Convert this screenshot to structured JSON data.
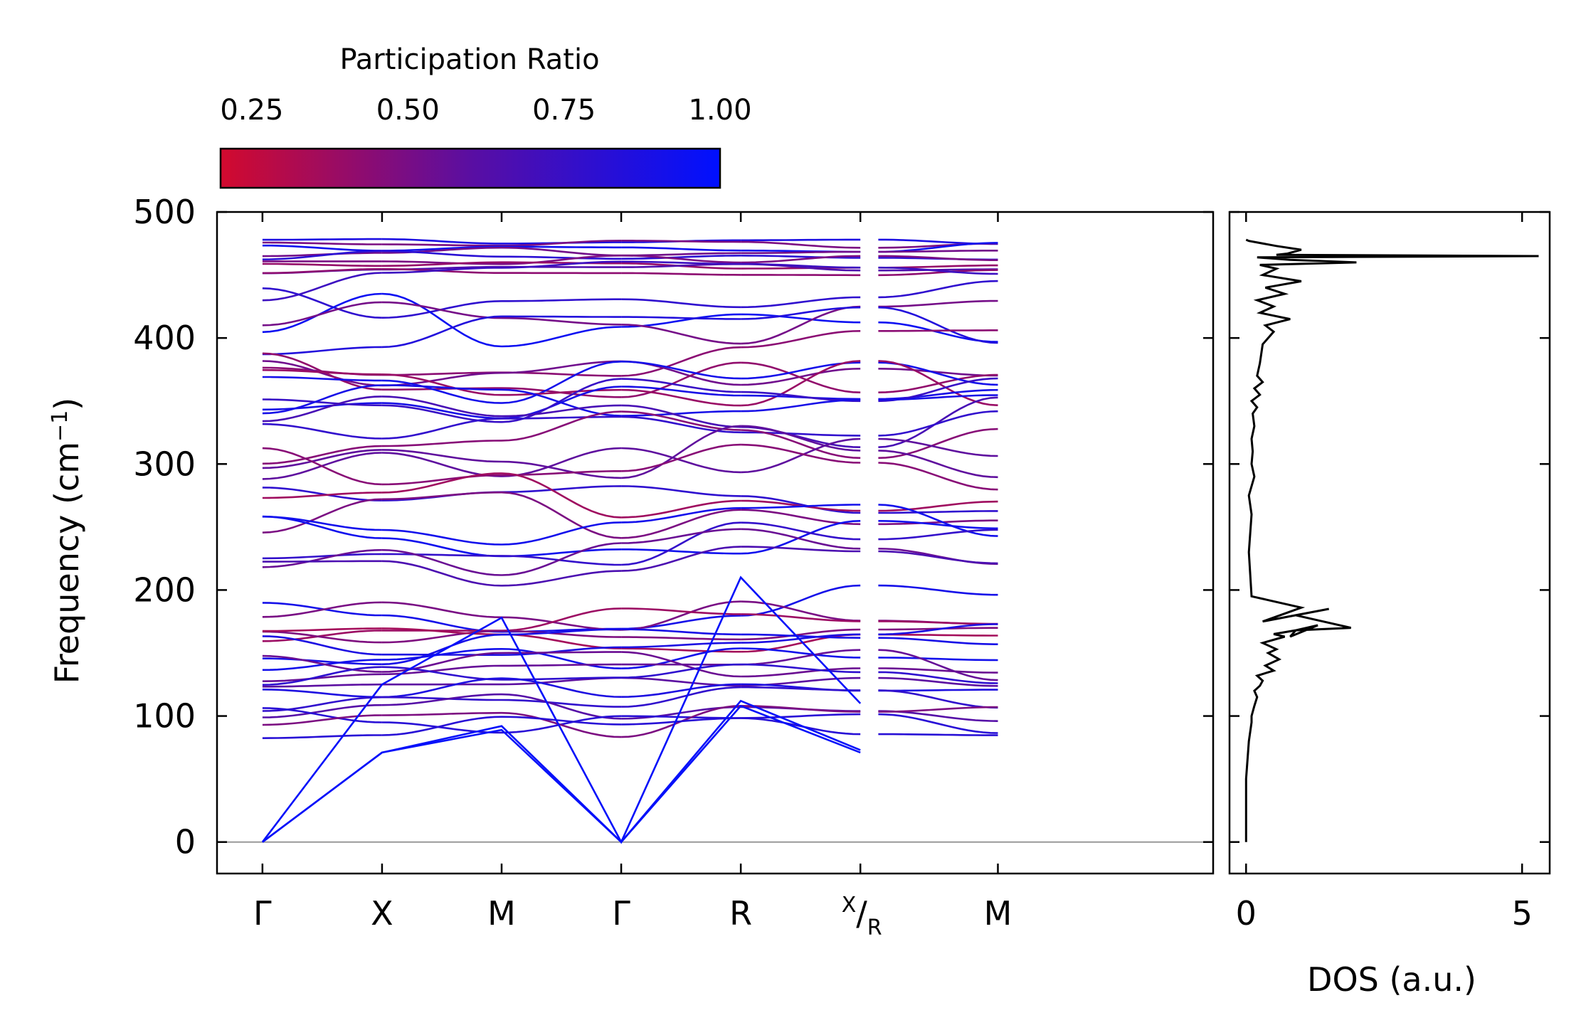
{
  "chart_data": [
    {
      "type": "line",
      "subtype": "phonon-dispersion",
      "colormap": {
        "title": "Participation Ratio",
        "range": [
          0.2,
          1.0
        ],
        "ticks": [
          0.25,
          0.5,
          0.75,
          1.0
        ],
        "tick_labels": [
          "0.25",
          "0.50",
          "0.75",
          "1.00"
        ],
        "low_color": "#d20a2e",
        "mid_color": "#5a0ea2",
        "high_color": "#0010ff"
      },
      "ylabel": "Frequency (cm",
      "ylabel_sup": "−1",
      "ylabel_close": ")",
      "ylim": [
        -25,
        500
      ],
      "yticks": [
        0,
        100,
        200,
        300,
        400,
        500
      ],
      "ytick_labels": [
        "0",
        "100",
        "200",
        "300",
        "400",
        "500"
      ],
      "kpath": {
        "labels": [
          "Γ",
          "X",
          "M",
          "Γ",
          "R",
          "X",
          "R",
          "M"
        ],
        "label_sub": "R",
        "segments": [
          [
            0,
            1
          ],
          [
            1,
            2
          ],
          [
            2,
            3
          ],
          [
            3,
            4
          ],
          [
            4,
            5
          ],
          [
            5.15,
            6.15
          ]
        ],
        "xlim": [
          -0.38,
          7.95
        ],
        "zero_line_color": "#999999"
      },
      "acoustic_branches": [
        {
          "x": [
            0,
            1,
            2,
            3,
            4,
            5
          ],
          "y": [
            0,
            71,
            89,
            0,
            108,
            71
          ]
        },
        {
          "x": [
            0,
            1,
            2,
            3,
            4,
            5
          ],
          "y": [
            0,
            71,
            92,
            0,
            112,
            73
          ]
        },
        {
          "x": [
            0,
            1,
            2,
            3,
            4,
            5
          ],
          "y": [
            0,
            125,
            178,
            0,
            210,
            110
          ]
        }
      ],
      "flat_bands": [
        478,
        475,
        472,
        468,
        465,
        462,
        458,
        455,
        452,
        440,
        437,
        415,
        412,
        408,
        391,
        382,
        375,
        370,
        365,
        357,
        350,
        342,
        332,
        325,
        320,
        310,
        302,
        298,
        282,
        275,
        262,
        248,
        245,
        235,
        228,
        220,
        185,
        180,
        172,
        168,
        165,
        160,
        155,
        150,
        145,
        140,
        135,
        130,
        122,
        115,
        110,
        100,
        95,
        88
      ]
    },
    {
      "type": "line",
      "subtype": "density-of-states",
      "xlabel": "DOS (a.u.)",
      "xlim": [
        -0.3,
        5.5
      ],
      "xticks": [
        0,
        5
      ],
      "xtick_labels": [
        "0",
        "5"
      ],
      "ylim": [
        -25,
        500
      ],
      "line_color": "#000000",
      "series": [
        {
          "name": "DOS",
          "x": [
            0,
            0,
            0.05,
            0.1,
            0.1,
            0.15,
            0.2,
            0.15,
            0.25,
            0.3,
            0.2,
            0.5,
            0.35,
            0.6,
            0.4,
            0.55,
            0.3,
            0.7,
            0.5,
            0.9,
            0.8,
            1.3,
            0.9,
            1.9,
            0.9,
            1.5,
            0.3,
            1.0,
            0.1,
            0.05,
            0.1,
            0.05,
            0.15,
            0.1,
            0.12,
            0.1,
            0.15,
            0.12,
            0.2,
            0.1,
            0.25,
            0.15,
            0.3,
            0.2,
            0.25,
            0.3,
            0.5,
            0.35,
            0.8,
            0.25,
            0.5,
            0.2,
            0.7,
            0.35,
            1.0,
            0.3,
            0.55,
            0.25,
            2.0,
            0.8,
            0.5,
            0.2,
            5.3,
            0.55,
            0.75,
            1.0,
            0.55,
            0.05,
            0
          ],
          "y": [
            0,
            50,
            80,
            95,
            100,
            108,
            115,
            120,
            124,
            128,
            132,
            136,
            140,
            145,
            150,
            153,
            158,
            163,
            165,
            168,
            163,
            172,
            168,
            170,
            180,
            185,
            175,
            186,
            195,
            230,
            260,
            275,
            290,
            300,
            310,
            320,
            330,
            340,
            345,
            350,
            355,
            360,
            365,
            370,
            380,
            395,
            405,
            410,
            415,
            420,
            425,
            430,
            435,
            440,
            445,
            450,
            455,
            458,
            460,
            462,
            463,
            464,
            465,
            466,
            467,
            470,
            473,
            477,
            478
          ]
        }
      ]
    }
  ]
}
